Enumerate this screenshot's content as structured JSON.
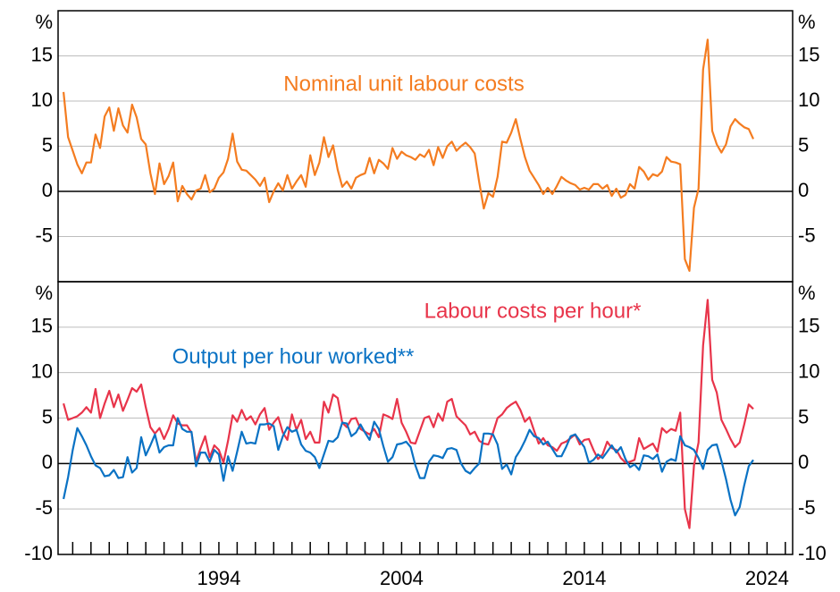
{
  "chart_data": [
    {
      "type": "line",
      "ylabel": "%",
      "ylim": [
        -10,
        20
      ],
      "yticks": [
        -5,
        0,
        5,
        10,
        15
      ],
      "xlim": [
        1985.2,
        2025.4
      ],
      "grid": true,
      "x": [
        1985.5,
        1985.75,
        1986,
        1986.25,
        1986.5,
        1986.75,
        1987,
        1987.25,
        1987.5,
        1987.75,
        1988,
        1988.25,
        1988.5,
        1988.75,
        1989,
        1989.25,
        1989.5,
        1989.75,
        1990,
        1990.25,
        1990.5,
        1990.75,
        1991,
        1991.25,
        1991.5,
        1991.75,
        1992,
        1992.25,
        1992.5,
        1992.75,
        1993,
        1993.25,
        1993.5,
        1993.75,
        1994,
        1994.25,
        1994.5,
        1994.75,
        1995,
        1995.25,
        1995.5,
        1995.75,
        1996,
        1996.25,
        1996.5,
        1996.75,
        1997,
        1997.25,
        1997.5,
        1997.75,
        1998,
        1998.25,
        1998.5,
        1998.75,
        1999,
        1999.25,
        1999.5,
        1999.75,
        2000,
        2000.25,
        2000.5,
        2000.75,
        2001,
        2001.25,
        2001.5,
        2001.75,
        2002,
        2002.25,
        2002.5,
        2002.75,
        2003,
        2003.25,
        2003.5,
        2003.75,
        2004,
        2004.25,
        2004.5,
        2004.75,
        2005,
        2005.25,
        2005.5,
        2005.75,
        2006,
        2006.25,
        2006.5,
        2006.75,
        2007,
        2007.25,
        2007.5,
        2007.75,
        2008,
        2008.25,
        2008.5,
        2008.75,
        2009,
        2009.25,
        2009.5,
        2009.75,
        2010,
        2010.25,
        2010.5,
        2010.75,
        2011,
        2011.25,
        2011.5,
        2011.75,
        2012,
        2012.25,
        2012.5,
        2012.75,
        2013,
        2013.25,
        2013.5,
        2013.75,
        2014,
        2014.25,
        2014.5,
        2014.75,
        2015,
        2015.25,
        2015.5,
        2015.75,
        2016,
        2016.25,
        2016.5,
        2016.75,
        2017,
        2017.25,
        2017.5,
        2017.75,
        2018,
        2018.25,
        2018.5,
        2018.75,
        2019,
        2019.25,
        2019.5,
        2019.75,
        2020,
        2020.25,
        2020.5,
        2020.75,
        2021,
        2021.25,
        2021.5,
        2021.75,
        2022,
        2022.25,
        2022.5,
        2022.75,
        2023,
        2023.25
      ],
      "series": [
        {
          "name": "Nominal unit labour costs",
          "color": "#f47c20",
          "values": [
            11,
            6,
            4.5,
            3,
            2,
            3.2,
            3.2,
            6.3,
            4.8,
            8.3,
            9.3,
            6.7,
            9.2,
            7.3,
            6.5,
            9.6,
            8.2,
            5.8,
            5.2,
            2,
            -0.3,
            3.1,
            0.8,
            1.7,
            3.2,
            -1.1,
            0.6,
            -0.3,
            -0.9,
            0.1,
            0.3,
            1.8,
            -0.1,
            0.3,
            1.5,
            2.1,
            3.6,
            6.4,
            3.3,
            2.4,
            2.3,
            1.8,
            1.3,
            0.6,
            1.5,
            -1.2,
            0,
            0.9,
            0.1,
            1.8,
            0.3,
            1.1,
            1.8,
            0.5,
            4,
            1.8,
            3.2,
            6,
            3.8,
            5.1,
            2.4,
            0.5,
            1.1,
            0.3,
            1.5,
            1.8,
            2,
            3.7,
            2,
            3.5,
            3.1,
            2.5,
            4.8,
            3.6,
            4.4,
            4,
            3.8,
            3.5,
            4.1,
            3.8,
            4.6,
            2.9,
            4.9,
            3.7,
            5,
            5.5,
            4.5,
            5,
            5.4,
            4.9,
            4.2,
            1,
            -1.9,
            -0.2,
            -0.6,
            1.6,
            5.5,
            5.4,
            6.5,
            8,
            5.8,
            3.8,
            2.3,
            1.5,
            0.7,
            -0.3,
            0.4,
            -0.3,
            0.6,
            1.6,
            1.2,
            0.9,
            0.7,
            0.2,
            0.4,
            0.2,
            0.8,
            0.8,
            0.3,
            0.7,
            -0.5,
            0.3,
            -0.7,
            -0.4,
            0.8,
            0.3,
            2.7,
            2.2,
            1.3,
            1.9,
            1.7,
            2.2,
            3.8,
            3.3,
            3.2,
            3,
            -7.5,
            -8.8,
            -1.8,
            0.3,
            13.5,
            16.8,
            6.7,
            5.2,
            4.3,
            5.2,
            7.2,
            8,
            7.5,
            7.1,
            6.9,
            5.8
          ]
        }
      ]
    },
    {
      "type": "line",
      "ylabel": "%",
      "ylim": [
        -10,
        20
      ],
      "yticks": [
        -10,
        -5,
        0,
        5,
        10,
        15
      ],
      "xlim": [
        1985.2,
        2025.4
      ],
      "grid": true,
      "xticks": [
        1994,
        2004,
        2014,
        2024
      ],
      "xminorticks": [
        1986,
        1987,
        1988,
        1989,
        1990,
        1991,
        1992,
        1993,
        1994,
        1995,
        1996,
        1997,
        1998,
        1999,
        2000,
        2001,
        2002,
        2003,
        2004,
        2005,
        2006,
        2007,
        2008,
        2009,
        2010,
        2011,
        2012,
        2013,
        2014,
        2015,
        2016,
        2017,
        2018,
        2019,
        2020,
        2021,
        2022,
        2023,
        2024,
        2025
      ],
      "x": [
        1985.5,
        1985.75,
        1986,
        1986.25,
        1986.5,
        1986.75,
        1987,
        1987.25,
        1987.5,
        1987.75,
        1988,
        1988.25,
        1988.5,
        1988.75,
        1989,
        1989.25,
        1989.5,
        1989.75,
        1990,
        1990.25,
        1990.5,
        1990.75,
        1991,
        1991.25,
        1991.5,
        1991.75,
        1992,
        1992.25,
        1992.5,
        1992.75,
        1993,
        1993.25,
        1993.5,
        1993.75,
        1994,
        1994.25,
        1994.5,
        1994.75,
        1995,
        1995.25,
        1995.5,
        1995.75,
        1996,
        1996.25,
        1996.5,
        1996.75,
        1997,
        1997.25,
        1997.5,
        1997.75,
        1998,
        1998.25,
        1998.5,
        1998.75,
        1999,
        1999.25,
        1999.5,
        1999.75,
        2000,
        2000.25,
        2000.5,
        2000.75,
        2001,
        2001.25,
        2001.5,
        2001.75,
        2002,
        2002.25,
        2002.5,
        2002.75,
        2003,
        2003.25,
        2003.5,
        2003.75,
        2004,
        2004.25,
        2004.5,
        2004.75,
        2005,
        2005.25,
        2005.5,
        2005.75,
        2006,
        2006.25,
        2006.5,
        2006.75,
        2007,
        2007.25,
        2007.5,
        2007.75,
        2008,
        2008.25,
        2008.5,
        2008.75,
        2009,
        2009.25,
        2009.5,
        2009.75,
        2010,
        2010.25,
        2010.5,
        2010.75,
        2011,
        2011.25,
        2011.5,
        2011.75,
        2012,
        2012.25,
        2012.5,
        2012.75,
        2013,
        2013.25,
        2013.5,
        2013.75,
        2014,
        2014.25,
        2014.5,
        2014.75,
        2015,
        2015.25,
        2015.5,
        2015.75,
        2016,
        2016.25,
        2016.5,
        2016.75,
        2017,
        2017.25,
        2017.5,
        2017.75,
        2018,
        2018.25,
        2018.5,
        2018.75,
        2019,
        2019.25,
        2019.5,
        2019.75,
        2020,
        2020.25,
        2020.5,
        2020.75,
        2021,
        2021.25,
        2021.5,
        2021.75,
        2022,
        2022.25,
        2022.5,
        2022.75,
        2023,
        2023.25
      ],
      "series": [
        {
          "name": "Labour costs per hour*",
          "color": "#e8344a",
          "values": [
            6.6,
            4.8,
            5,
            5.2,
            5.6,
            6.2,
            5.6,
            8.2,
            5,
            6.6,
            8,
            6.2,
            7.6,
            5.8,
            7,
            8.3,
            7.9,
            8.7,
            6.2,
            4,
            3.3,
            3.9,
            2.7,
            3.8,
            5.3,
            4.4,
            4.2,
            4.2,
            3.4,
            0.2,
            1.7,
            3,
            0.7,
            2,
            1.5,
            0.1,
            2.5,
            5.3,
            4.6,
            5.9,
            4.8,
            5.2,
            4.3,
            5.4,
            6.1,
            3.7,
            4.5,
            5.1,
            3.4,
            2.6,
            5.4,
            3.7,
            4.8,
            2.7,
            3.5,
            2.3,
            2.3,
            6.8,
            5.6,
            7.6,
            7.2,
            4.5,
            4,
            4.9,
            5,
            3.8,
            3.5,
            3.2,
            3.8,
            2.9,
            5.4,
            5.2,
            4.9,
            7.1,
            4.5,
            3.5,
            2.3,
            2.2,
            3.6,
            5,
            5.2,
            4,
            5.5,
            4.7,
            6.8,
            7.1,
            5.2,
            4.7,
            4.2,
            3.2,
            3.5,
            2.5,
            2.2,
            2.1,
            3.4,
            5,
            5.4,
            6.1,
            6.5,
            6.8,
            5.9,
            4.6,
            5.1,
            3.6,
            2.2,
            2.8,
            2,
            1.8,
            1.4,
            2.2,
            2.4,
            2.8,
            3.2,
            2.1,
            2.6,
            2.7,
            1.5,
            0.5,
            1,
            2.4,
            1.7,
            1.5,
            0.6,
            0.1,
            0.2,
            0.4,
            2.8,
            1.6,
            1.9,
            2.2,
            1.3,
            3.9,
            3.4,
            3.8,
            3.6,
            5.6,
            -5,
            -7.1,
            -0.2,
            2.3,
            13,
            18,
            9.2,
            7.8,
            4.8,
            3.8,
            2.7,
            1.8,
            2.3,
            4.3,
            6.5,
            6
          ]
        },
        {
          "name": "Output per hour worked**",
          "color": "#0a72c4",
          "values": [
            -3.9,
            -1.5,
            1.5,
            3.9,
            3,
            2,
            0.8,
            -0.2,
            -0.5,
            -1.4,
            -1.3,
            -0.7,
            -1.6,
            -1.5,
            0.7,
            -1,
            -0.5,
            2.9,
            0.9,
            2,
            3.2,
            1.2,
            1.8,
            2,
            2,
            5,
            3.8,
            3.5,
            3.5,
            -0.3,
            1.2,
            1.2,
            0.2,
            1.5,
            1,
            -1.9,
            0.8,
            -0.8,
            1.3,
            3.5,
            2.2,
            2.3,
            2.2,
            4.3,
            4.3,
            4.4,
            4.1,
            1.5,
            3,
            4,
            3.5,
            3.7,
            2.1,
            1.4,
            1.2,
            0.7,
            -0.5,
            1,
            2.5,
            2.4,
            2.9,
            4.5,
            4.4,
            3,
            3.4,
            4.3,
            3.4,
            2.6,
            4.6,
            3.8,
            1.9,
            0.2,
            0.7,
            2.1,
            2.2,
            2.4,
            1.8,
            -0.2,
            -1.6,
            -1.6,
            0.2,
            0.9,
            0.8,
            0.6,
            1.6,
            1.7,
            1.5,
            0,
            -0.8,
            -1.1,
            -0.5,
            0,
            3.3,
            3.3,
            3.2,
            2.1,
            -0.6,
            -0.1,
            -1.2,
            0.7,
            1.5,
            2.5,
            3.7,
            3,
            2.8,
            2.1,
            2.4,
            1.6,
            0.8,
            0.8,
            1.8,
            3,
            3.2,
            2.5,
            1.8,
            0.1,
            0.4,
            1,
            0.6,
            1.3,
            2,
            1.2,
            1.8,
            0.5,
            -0.4,
            -0.1,
            -0.7,
            0.9,
            0.8,
            0.5,
            1,
            -0.9,
            0.2,
            0.5,
            0.3,
            3,
            2,
            1.8,
            1.5,
            0.6,
            -0.6,
            1.5,
            2,
            2.1,
            0.3,
            -1.7,
            -4,
            -5.7,
            -4.8,
            -2.4,
            -0.3,
            0.4
          ]
        }
      ]
    }
  ]
}
